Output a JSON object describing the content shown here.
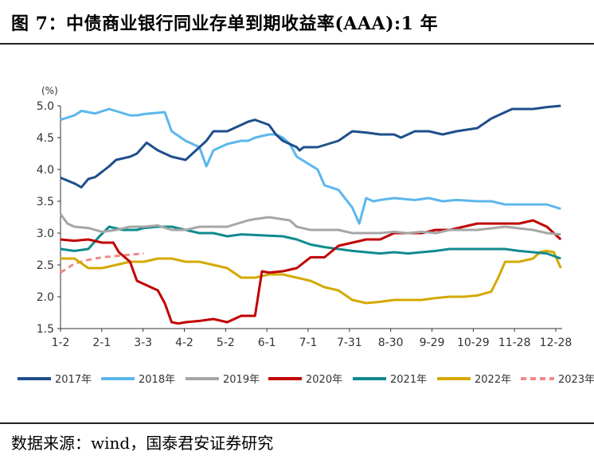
{
  "title": "图 7：中债商业银行同业存单到期收益率(AAA):1 年",
  "source": "数据来源：wind，国泰君安证券研究",
  "chart_data": {
    "type": "line",
    "title": "中债商业银行同业存单到期收益率(AAA):1 年",
    "ylabel": "(%)",
    "xlabel": "",
    "ylim": [
      1.5,
      5.0
    ],
    "yticks": [
      "5.0",
      "4.5",
      "4.0",
      "3.5",
      "3.0",
      "2.5",
      "2.0",
      "1.5"
    ],
    "xticks": [
      "1-2",
      "2-1",
      "3-3",
      "4-2",
      "5-2",
      "6-1",
      "7-1",
      "7-31",
      "8-30",
      "9-29",
      "10-29",
      "11-28",
      "12-28"
    ],
    "x_day_range": [
      0,
      361
    ],
    "legend_position": "bottom",
    "grid": false,
    "series": [
      {
        "name": "2017年",
        "color": "#1f4e8c",
        "dashed": false,
        "x": [
          0,
          10,
          15,
          20,
          25,
          35,
          40,
          50,
          55,
          62,
          70,
          80,
          90,
          95,
          100,
          105,
          110,
          120,
          130,
          135,
          140,
          150,
          155,
          160,
          170,
          172,
          175,
          185,
          200,
          210,
          220,
          230,
          240,
          245,
          250,
          255,
          265,
          275,
          285,
          300,
          310,
          320,
          325,
          330,
          340,
          350,
          360
        ],
        "values": [
          3.87,
          3.78,
          3.72,
          3.85,
          3.88,
          4.05,
          4.15,
          4.2,
          4.25,
          4.42,
          4.3,
          4.2,
          4.15,
          4.25,
          4.35,
          4.45,
          4.6,
          4.6,
          4.7,
          4.75,
          4.78,
          4.7,
          4.55,
          4.45,
          4.35,
          4.3,
          4.35,
          4.35,
          4.45,
          4.6,
          4.58,
          4.55,
          4.55,
          4.5,
          4.55,
          4.6,
          4.6,
          4.55,
          4.6,
          4.65,
          4.8,
          4.9,
          4.95,
          4.95,
          4.95,
          4.98,
          5.0
        ]
      },
      {
        "name": "2018年",
        "color": "#5bb7ec",
        "dashed": false,
        "x": [
          0,
          10,
          15,
          25,
          35,
          50,
          55,
          60,
          75,
          80,
          90,
          100,
          105,
          110,
          120,
          130,
          135,
          140,
          150,
          155,
          160,
          165,
          170,
          185,
          190,
          200,
          210,
          215,
          220,
          225,
          230,
          240,
          255,
          265,
          275,
          285,
          300,
          310,
          320,
          330,
          340,
          350,
          360
        ],
        "values": [
          4.78,
          4.85,
          4.92,
          4.88,
          4.95,
          4.85,
          4.85,
          4.87,
          4.9,
          4.6,
          4.45,
          4.35,
          4.05,
          4.3,
          4.4,
          4.45,
          4.45,
          4.5,
          4.55,
          4.55,
          4.5,
          4.4,
          4.2,
          4.0,
          3.75,
          3.68,
          3.4,
          3.15,
          3.55,
          3.5,
          3.52,
          3.55,
          3.52,
          3.55,
          3.5,
          3.52,
          3.5,
          3.5,
          3.45,
          3.45,
          3.45,
          3.45,
          3.38
        ]
      },
      {
        "name": "2019年",
        "color": "#a6a6a6",
        "dashed": false,
        "x": [
          0,
          5,
          10,
          20,
          30,
          40,
          50,
          60,
          70,
          80,
          90,
          100,
          110,
          120,
          135,
          140,
          150,
          165,
          170,
          180,
          190,
          200,
          210,
          220,
          230,
          240,
          250,
          260,
          270,
          280,
          290,
          300,
          320,
          340,
          350,
          360
        ],
        "values": [
          3.3,
          3.15,
          3.1,
          3.08,
          3.02,
          3.05,
          3.1,
          3.1,
          3.12,
          3.05,
          3.05,
          3.1,
          3.1,
          3.1,
          3.2,
          3.22,
          3.25,
          3.2,
          3.1,
          3.05,
          3.05,
          3.05,
          3.0,
          3.0,
          3.0,
          3.02,
          3.0,
          3.02,
          3.0,
          3.05,
          3.05,
          3.05,
          3.1,
          3.05,
          3.0,
          2.98
        ]
      },
      {
        "name": "2020年",
        "color": "#c00000",
        "dashed": false,
        "x": [
          0,
          10,
          20,
          30,
          38,
          42,
          50,
          55,
          65,
          70,
          75,
          80,
          85,
          90,
          100,
          110,
          120,
          130,
          140,
          145,
          150,
          160,
          170,
          180,
          190,
          200,
          210,
          220,
          230,
          240,
          250,
          260,
          270,
          280,
          290,
          300,
          310,
          320,
          330,
          340,
          350,
          360
        ],
        "values": [
          2.9,
          2.88,
          2.9,
          2.85,
          2.85,
          2.7,
          2.55,
          2.25,
          2.15,
          2.1,
          1.9,
          1.6,
          1.58,
          1.6,
          1.62,
          1.65,
          1.6,
          1.7,
          1.7,
          2.4,
          2.38,
          2.4,
          2.45,
          2.62,
          2.62,
          2.8,
          2.85,
          2.9,
          2.9,
          3.0,
          3.0,
          3.0,
          3.05,
          3.05,
          3.1,
          3.15,
          3.15,
          3.15,
          3.15,
          3.2,
          3.1,
          2.9
        ]
      },
      {
        "name": "2021年",
        "color": "#0f8b8d",
        "dashed": false,
        "x": [
          0,
          10,
          20,
          28,
          35,
          45,
          55,
          60,
          70,
          80,
          90,
          100,
          110,
          120,
          130,
          140,
          150,
          160,
          170,
          180,
          190,
          200,
          210,
          220,
          230,
          240,
          250,
          260,
          270,
          280,
          290,
          300,
          310,
          320,
          330,
          340,
          350,
          360
        ],
        "values": [
          2.75,
          2.72,
          2.75,
          2.95,
          3.1,
          3.05,
          3.05,
          3.08,
          3.1,
          3.1,
          3.05,
          3.0,
          3.0,
          2.95,
          2.98,
          2.97,
          2.96,
          2.95,
          2.9,
          2.82,
          2.78,
          2.75,
          2.72,
          2.7,
          2.68,
          2.7,
          2.68,
          2.7,
          2.72,
          2.75,
          2.75,
          2.75,
          2.75,
          2.75,
          2.72,
          2.7,
          2.68,
          2.6
        ]
      },
      {
        "name": "2022年",
        "color": "#d4a900",
        "dashed": false,
        "x": [
          0,
          10,
          20,
          30,
          40,
          50,
          60,
          70,
          80,
          90,
          100,
          110,
          120,
          130,
          140,
          150,
          160,
          170,
          180,
          190,
          200,
          210,
          220,
          230,
          240,
          250,
          260,
          270,
          280,
          290,
          300,
          310,
          315,
          320,
          330,
          340,
          345,
          350,
          355,
          360
        ],
        "values": [
          2.6,
          2.6,
          2.45,
          2.45,
          2.5,
          2.55,
          2.55,
          2.6,
          2.6,
          2.55,
          2.55,
          2.5,
          2.45,
          2.3,
          2.3,
          2.35,
          2.35,
          2.3,
          2.25,
          2.15,
          2.1,
          1.95,
          1.9,
          1.92,
          1.95,
          1.95,
          1.95,
          1.98,
          2.0,
          2.0,
          2.02,
          2.08,
          2.3,
          2.55,
          2.55,
          2.6,
          2.7,
          2.72,
          2.7,
          2.45
        ]
      },
      {
        "name": "2023年",
        "color": "#f08a8a",
        "dashed": true,
        "x": [
          0,
          5,
          10,
          15,
          20,
          25,
          30,
          35,
          40,
          45,
          50,
          55,
          60
        ],
        "values": [
          2.38,
          2.45,
          2.52,
          2.55,
          2.58,
          2.6,
          2.62,
          2.63,
          2.64,
          2.65,
          2.66,
          2.67,
          2.68
        ]
      }
    ]
  }
}
